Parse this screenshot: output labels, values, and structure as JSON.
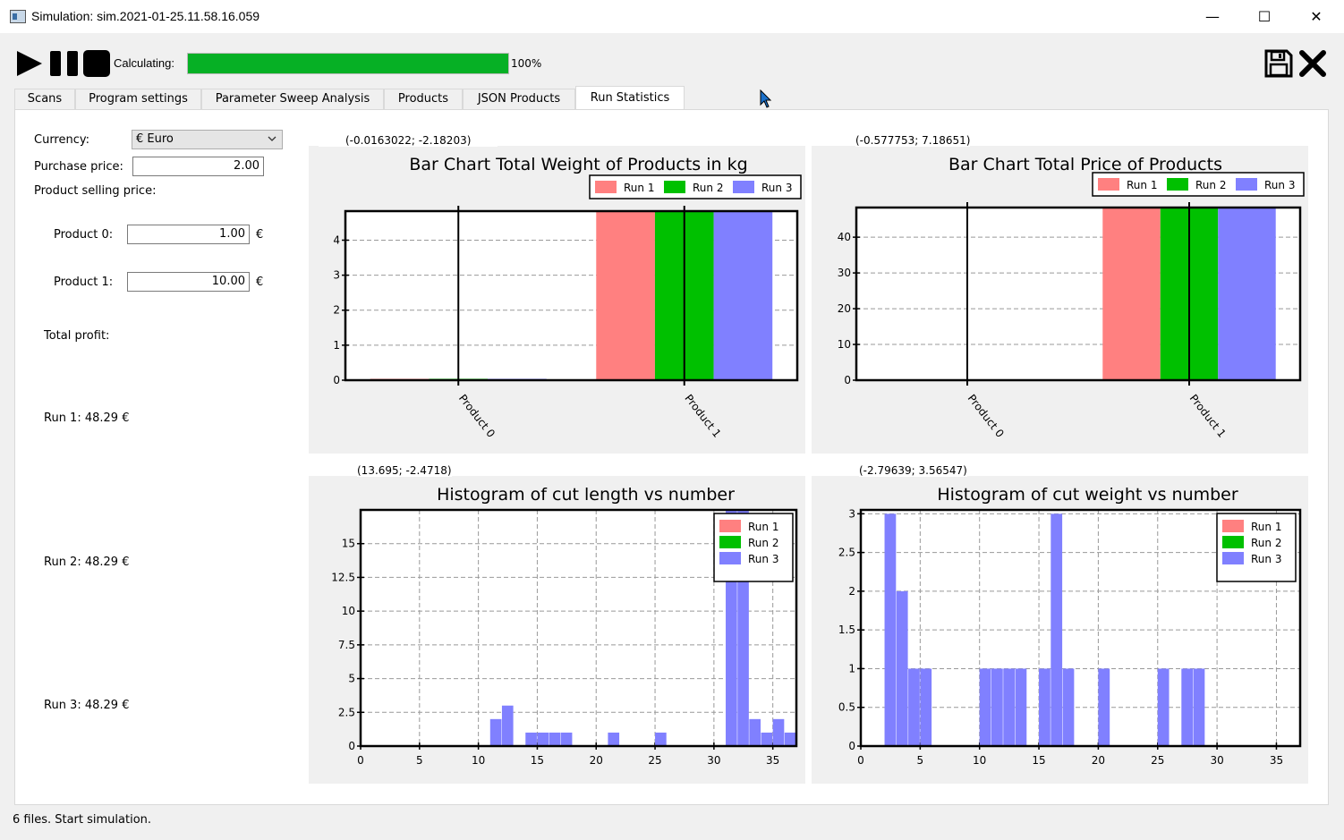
{
  "window": {
    "title": "Simulation: sim.2021-01-25.11.58.16.059",
    "minimize": "—",
    "maximize": "☐",
    "close": "✕"
  },
  "toolbar": {
    "calc_label": "Calculating:",
    "progress": 100,
    "progress_text": "100%",
    "icons": [
      "play-icon",
      "pause-icon",
      "stop-icon",
      "save-icon",
      "close-icon"
    ]
  },
  "tabs": [
    {
      "label": "Scans",
      "active": false
    },
    {
      "label": "Program settings",
      "active": false
    },
    {
      "label": "Parameter Sweep Analysis",
      "active": false
    },
    {
      "label": "Products",
      "active": false
    },
    {
      "label": "JSON Products",
      "active": false
    },
    {
      "label": "Run Statistics",
      "active": true
    }
  ],
  "side": {
    "currency_label": "Currency:",
    "currency_value": "€ Euro",
    "purchase_label": "Purchase price:",
    "purchase_value": "2.00",
    "selling_label": "Product selling price:",
    "products": [
      {
        "label": "Product 0:",
        "value": "1.00",
        "unit": "€"
      },
      {
        "label": "Product 1:",
        "value": "10.00",
        "unit": "€"
      }
    ],
    "total_profit_label": "Total profit:",
    "runs": [
      "Run 1: 48.29 €",
      "Run 2: 48.29 €",
      "Run 3: 48.29 €"
    ]
  },
  "colors": {
    "run1": "#ff8080",
    "run2": "#00c000",
    "run3": "#8080ff",
    "accent": "#06b025"
  },
  "chart_data": [
    {
      "type": "bar",
      "title": "Bar Chart Total Weight of Products in kg",
      "coord": "(-0.0163022; -2.18203)",
      "categories": [
        "Product 0",
        "Product 1"
      ],
      "series": [
        {
          "name": "Run 1",
          "values": [
            0.04,
            4.83
          ]
        },
        {
          "name": "Run 2",
          "values": [
            0.04,
            4.83
          ]
        },
        {
          "name": "Run 3",
          "values": [
            0.04,
            4.83
          ]
        }
      ],
      "ylim": [
        0,
        4.83
      ],
      "yticks": [
        "0",
        "1",
        "2",
        "3",
        "4"
      ],
      "legend": "top-right"
    },
    {
      "type": "bar",
      "title": "Bar Chart Total Price of Products",
      "coord": "(-0.577753; 7.18651)",
      "categories": [
        "Product 0",
        "Product 1"
      ],
      "series": [
        {
          "name": "Run 1",
          "values": [
            0,
            48.29
          ]
        },
        {
          "name": "Run 2",
          "values": [
            0,
            48.29
          ]
        },
        {
          "name": "Run 3",
          "values": [
            0,
            48.29
          ]
        }
      ],
      "ylim": [
        0,
        48.29
      ],
      "yticks": [
        "0",
        "10",
        "20",
        "30",
        "40"
      ],
      "legend": "top-right"
    },
    {
      "type": "bar",
      "title": "Histogram of cut length vs number",
      "coord": "(13.695; -2.4718)",
      "xlim": [
        0,
        37
      ],
      "ylim": [
        0,
        17.5
      ],
      "xticks": [
        "0",
        "5",
        "10",
        "15",
        "20",
        "25",
        "30",
        "35"
      ],
      "yticks": [
        "0",
        "2.5",
        "5",
        "7.5",
        "10",
        "12.5",
        "15"
      ],
      "series": [
        {
          "name": "Run 1",
          "values": []
        },
        {
          "name": "Run 2",
          "values": []
        },
        {
          "name": "Run 3",
          "bins": [
            {
              "x": 11,
              "y": 2
            },
            {
              "x": 12,
              "y": 3
            },
            {
              "x": 14,
              "y": 1
            },
            {
              "x": 15,
              "y": 1
            },
            {
              "x": 16,
              "y": 1
            },
            {
              "x": 17,
              "y": 1
            },
            {
              "x": 21,
              "y": 1
            },
            {
              "x": 25,
              "y": 1
            },
            {
              "x": 31,
              "y": 17.5
            },
            {
              "x": 32,
              "y": 17.5
            },
            {
              "x": 33,
              "y": 2
            },
            {
              "x": 34,
              "y": 1
            },
            {
              "x": 35,
              "y": 2
            },
            {
              "x": 36,
              "y": 1
            }
          ]
        }
      ],
      "legend": "top-right"
    },
    {
      "type": "bar",
      "title": "Histogram of cut weight vs number",
      "coord": "(-2.79639; 3.56547)",
      "xlim": [
        0,
        37
      ],
      "ylim": [
        0,
        3.05
      ],
      "xticks": [
        "0",
        "5",
        "10",
        "15",
        "20",
        "25",
        "30",
        "35"
      ],
      "yticks": [
        "0",
        "0.5",
        "1",
        "1.5",
        "2",
        "2.5",
        "3"
      ],
      "series": [
        {
          "name": "Run 1",
          "values": []
        },
        {
          "name": "Run 2",
          "values": []
        },
        {
          "name": "Run 3",
          "bins": [
            {
              "x": 2,
              "y": 3
            },
            {
              "x": 3,
              "y": 2
            },
            {
              "x": 4,
              "y": 1
            },
            {
              "x": 5,
              "y": 1
            },
            {
              "x": 10,
              "y": 1
            },
            {
              "x": 11,
              "y": 1
            },
            {
              "x": 12,
              "y": 1
            },
            {
              "x": 13,
              "y": 1
            },
            {
              "x": 15,
              "y": 1
            },
            {
              "x": 16,
              "y": 3
            },
            {
              "x": 17,
              "y": 1
            },
            {
              "x": 20,
              "y": 1
            },
            {
              "x": 25,
              "y": 1
            },
            {
              "x": 27,
              "y": 1
            },
            {
              "x": 28,
              "y": 1
            }
          ]
        }
      ],
      "legend": "top-right"
    }
  ],
  "status": "6 files. Start simulation."
}
